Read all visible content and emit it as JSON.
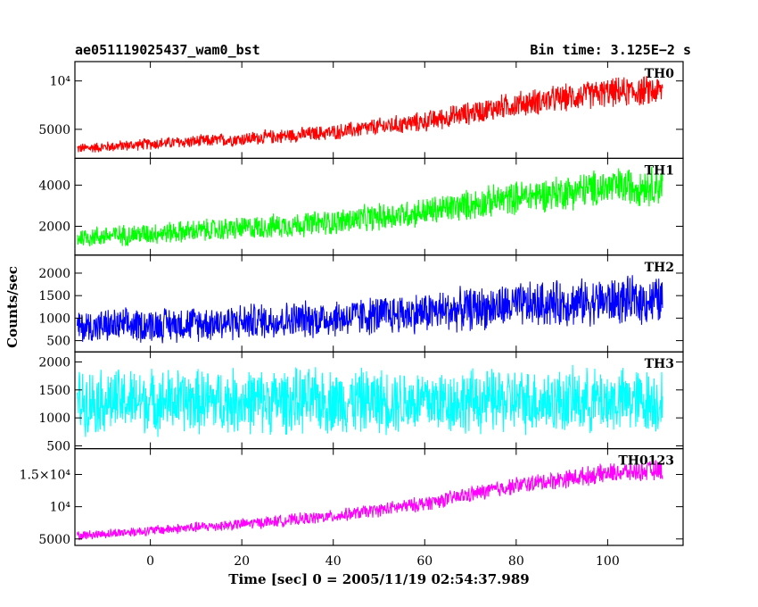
{
  "header": {
    "left_title": "ae051119025437_wam0_bst",
    "right_title": "Bin time: 3.125E−2 s"
  },
  "chart_data": {
    "type": "line",
    "x": {
      "label": "Time [sec] 0 = 2005/11/19 02:54:37.989",
      "lim": [
        -16.5,
        116.5
      ],
      "ticks": [
        0,
        20,
        40,
        60,
        80,
        100
      ],
      "data_range": [
        -16,
        112
      ]
    },
    "ylabel": "Counts/sec",
    "grid": false,
    "panels": [
      {
        "name": "TH0",
        "color": "#ff0000",
        "ylim": [
          2000,
          12000
        ],
        "yticks": [
          {
            "v": 5000,
            "t": "5000"
          },
          {
            "v": 10000,
            "t": "10⁴"
          }
        ],
        "baseline": [
          [
            -16,
            3000
          ],
          [
            0,
            3500
          ],
          [
            20,
            4000
          ],
          [
            40,
            4700
          ],
          [
            60,
            5800
          ],
          [
            80,
            7600
          ],
          [
            100,
            8800
          ],
          [
            112,
            9000
          ]
        ],
        "spread": [
          [
            -16,
            600
          ],
          [
            40,
            900
          ],
          [
            80,
            1500
          ],
          [
            112,
            1800
          ]
        ]
      },
      {
        "name": "TH1",
        "color": "#00ff00",
        "ylim": [
          600,
          5300
        ],
        "yticks": [
          {
            "v": 2000,
            "t": "2000"
          },
          {
            "v": 4000,
            "t": "4000"
          }
        ],
        "baseline": [
          [
            -16,
            1450
          ],
          [
            0,
            1650
          ],
          [
            20,
            1900
          ],
          [
            40,
            2200
          ],
          [
            60,
            2700
          ],
          [
            80,
            3400
          ],
          [
            100,
            3900
          ],
          [
            112,
            4000
          ]
        ],
        "spread": [
          [
            -16,
            550
          ],
          [
            40,
            700
          ],
          [
            80,
            900
          ],
          [
            112,
            1100
          ]
        ]
      },
      {
        "name": "TH2",
        "color": "#0000ff",
        "ylim": [
          250,
          2400
        ],
        "yticks": [
          {
            "v": 500,
            "t": "500"
          },
          {
            "v": 1000,
            "t": "1000"
          },
          {
            "v": 1500,
            "t": "1500"
          },
          {
            "v": 2000,
            "t": "2000"
          }
        ],
        "baseline": [
          [
            -16,
            800
          ],
          [
            0,
            850
          ],
          [
            20,
            920
          ],
          [
            40,
            1000
          ],
          [
            60,
            1130
          ],
          [
            80,
            1280
          ],
          [
            100,
            1380
          ],
          [
            112,
            1400
          ]
        ],
        "spread": [
          [
            -16,
            420
          ],
          [
            40,
            470
          ],
          [
            80,
            560
          ],
          [
            112,
            600
          ]
        ]
      },
      {
        "name": "TH3",
        "color": "#00ffff",
        "ylim": [
          450,
          2180
        ],
        "yticks": [
          {
            "v": 500,
            "t": "500"
          },
          {
            "v": 1000,
            "t": "1000"
          },
          {
            "v": 1500,
            "t": "1500"
          },
          {
            "v": 2000,
            "t": "2000"
          }
        ],
        "baseline": [
          [
            -16,
            1300
          ],
          [
            112,
            1300
          ]
        ],
        "spread": [
          [
            -16,
            650
          ],
          [
            112,
            650
          ]
        ]
      },
      {
        "name": "TH0123",
        "color": "#ff00ff",
        "ylim": [
          4000,
          19000
        ],
        "yticks": [
          {
            "v": 5000,
            "t": "5000"
          },
          {
            "v": 10000,
            "t": "10⁴"
          },
          {
            "v": 15000,
            "t": "1.5×10⁴"
          }
        ],
        "baseline": [
          [
            -16,
            5500
          ],
          [
            0,
            6300
          ],
          [
            20,
            7300
          ],
          [
            40,
            8500
          ],
          [
            60,
            10500
          ],
          [
            80,
            13300
          ],
          [
            100,
            15200
          ],
          [
            112,
            15700
          ]
        ],
        "spread": [
          [
            -16,
            800
          ],
          [
            40,
            1100
          ],
          [
            80,
            1500
          ],
          [
            112,
            1800
          ]
        ]
      }
    ]
  }
}
